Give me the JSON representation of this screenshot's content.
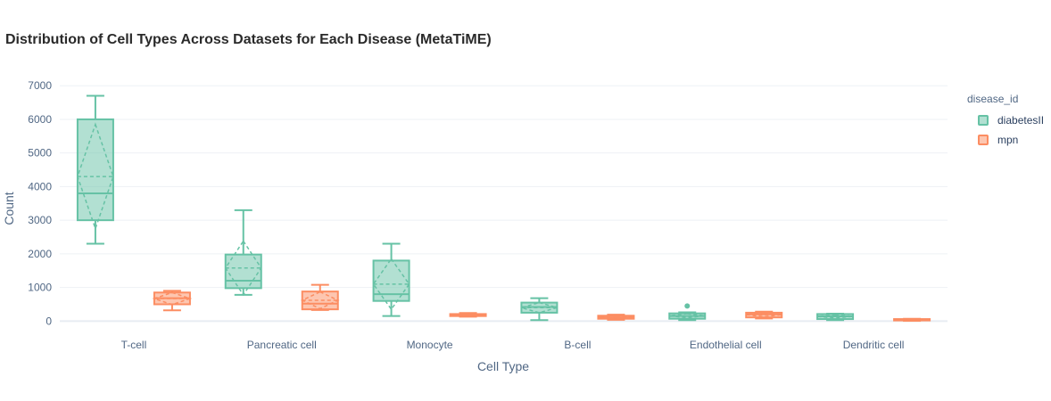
{
  "title": "Distribution of Cell Types Across Datasets for Each Disease (MetaTiME)",
  "chart_data": {
    "type": "box",
    "xlabel": "Cell Type",
    "ylabel": "Count",
    "ylim": [
      -150,
      7350
    ],
    "yticks": [
      0,
      1000,
      2000,
      3000,
      4000,
      5000,
      6000,
      7000
    ],
    "grid": true,
    "legend_title": "disease_id",
    "legend_position": "top-right",
    "categories": [
      "T-cell",
      "Pancreatic cell",
      "Monocyte",
      "B-cell",
      "Endothelial cell",
      "Dendritic cell"
    ],
    "series": [
      {
        "name": "diabetesII",
        "color": "#66c2a5",
        "fill": "rgba(102,194,165,0.5)",
        "boxes": [
          {
            "min": 2300,
            "q1": 3000,
            "median": 3800,
            "q3": 6000,
            "max": 6700,
            "mean": 4300,
            "sd": 1550,
            "outliers": []
          },
          {
            "min": 780,
            "q1": 980,
            "median": 1200,
            "q3": 1980,
            "max": 3300,
            "mean": 1580,
            "sd": 800,
            "outliers": []
          },
          {
            "min": 150,
            "q1": 600,
            "median": 800,
            "q3": 1800,
            "max": 2300,
            "mean": 1100,
            "sd": 750,
            "outliers": []
          },
          {
            "min": 30,
            "q1": 250,
            "median": 420,
            "q3": 550,
            "max": 680,
            "mean": 400,
            "sd": 150,
            "outliers": []
          },
          {
            "min": 30,
            "q1": 70,
            "median": 150,
            "q3": 230,
            "max": 260,
            "mean": 160,
            "sd": 60,
            "outliers": [
              450
            ]
          },
          {
            "min": 30,
            "q1": 60,
            "median": 140,
            "q3": 210,
            "max": 220,
            "mean": 140,
            "sd": 50,
            "outliers": []
          }
        ]
      },
      {
        "name": "mpn",
        "color": "#fc8d62",
        "fill": "rgba(252,141,98,0.5)",
        "boxes": [
          {
            "min": 320,
            "q1": 500,
            "median": 680,
            "q3": 850,
            "max": 900,
            "mean": 670,
            "sd": 180,
            "outliers": []
          },
          {
            "min": 330,
            "q1": 350,
            "median": 520,
            "q3": 880,
            "max": 1080,
            "mean": 620,
            "sd": 250,
            "outliers": []
          },
          {
            "min": 130,
            "q1": 150,
            "median": 180,
            "q3": 210,
            "max": 240,
            "mean": 180,
            "sd": 30,
            "outliers": []
          },
          {
            "min": 40,
            "q1": 70,
            "median": 110,
            "q3": 160,
            "max": 190,
            "mean": 115,
            "sd": 40,
            "outliers": []
          },
          {
            "min": 80,
            "q1": 110,
            "median": 200,
            "q3": 250,
            "max": 280,
            "mean": 190,
            "sd": 60,
            "outliers": []
          },
          {
            "min": 10,
            "q1": 20,
            "median": 40,
            "q3": 60,
            "max": 70,
            "mean": 40,
            "sd": 20,
            "outliers": []
          }
        ]
      }
    ]
  }
}
